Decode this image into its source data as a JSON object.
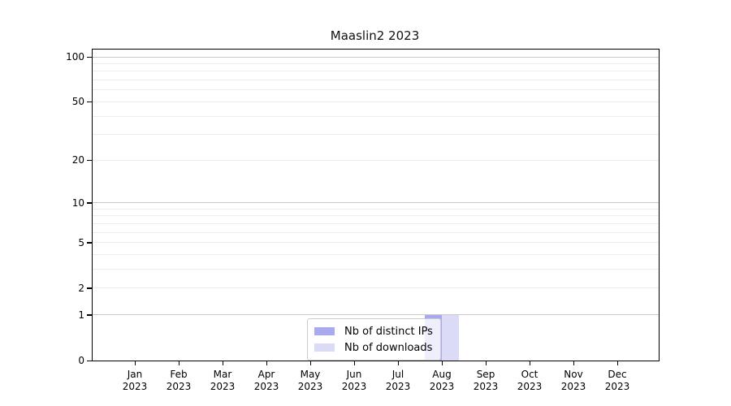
{
  "chart_data": {
    "type": "bar",
    "title": "Maaslin2 2023",
    "months": [
      "Jan",
      "Feb",
      "Mar",
      "Apr",
      "May",
      "Jun",
      "Jul",
      "Aug",
      "Sep",
      "Oct",
      "Nov",
      "Dec"
    ],
    "x_tick_year": "2023",
    "series": [
      {
        "name": "Nb of distinct IPs",
        "color": "#a9a9ef",
        "values": [
          0,
          0,
          0,
          0,
          0,
          0,
          0,
          1,
          0,
          0,
          0,
          0
        ]
      },
      {
        "name": "Nb of downloads",
        "color": "#dbdbf8",
        "values": [
          0,
          0,
          0,
          0,
          0,
          0,
          0,
          1,
          0,
          0,
          0,
          0
        ]
      }
    ],
    "y_scale": "log1p",
    "ylim": [
      0,
      112
    ],
    "y_ticks": [
      0,
      1,
      2,
      5,
      10,
      20,
      50,
      100
    ],
    "y_minor_gridlines": [
      2,
      3,
      4,
      5,
      6,
      7,
      8,
      9,
      20,
      30,
      40,
      50,
      60,
      70,
      80,
      90
    ],
    "y_major_gridlines": [
      1,
      10,
      100
    ],
    "grid": "horizontal",
    "legend_position": "lower center",
    "colors": {
      "major_grid": "#c8c8c8",
      "minor_grid": "#ededed",
      "axis": "#000000",
      "background": "#ffffff"
    }
  }
}
